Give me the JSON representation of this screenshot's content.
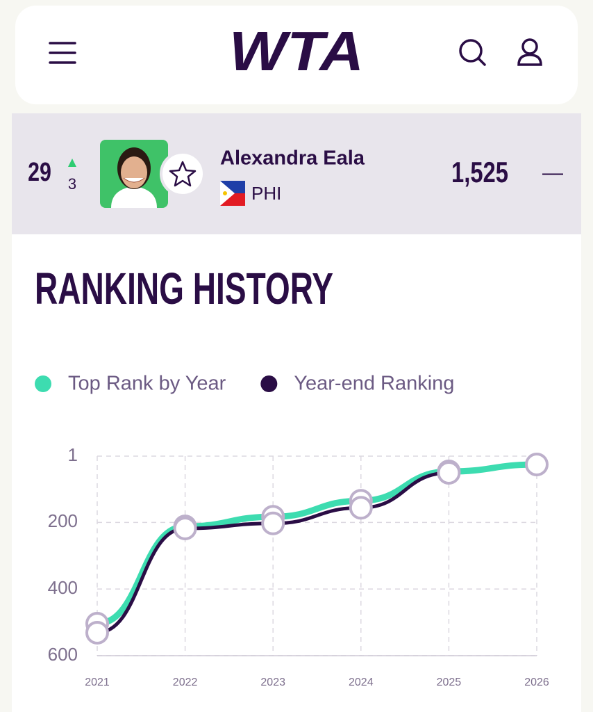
{
  "header": {
    "logo": "WTA"
  },
  "player": {
    "rank": 29,
    "rank_change": 3,
    "name": "Alexandra Eala",
    "country": "PHI",
    "points": "1,525",
    "points_change": "—"
  },
  "chart_data": {
    "type": "line",
    "title": "RANKING HISTORY",
    "categories": [
      "2021",
      "2022",
      "2023",
      "2024",
      "2025",
      "2026"
    ],
    "series": [
      {
        "name": "Top Rank by Year",
        "color": "#3ddcb0",
        "values": [
          504,
          212,
          183,
          135,
          47,
          26
        ]
      },
      {
        "name": "Year-end Ranking",
        "color": "#2a0d45",
        "values": [
          531,
          218,
          203,
          156,
          51,
          null
        ]
      }
    ],
    "ylim": [
      1,
      600
    ],
    "y_inverted": true,
    "yticks": [
      1,
      200,
      400,
      600
    ],
    "grid": true
  }
}
